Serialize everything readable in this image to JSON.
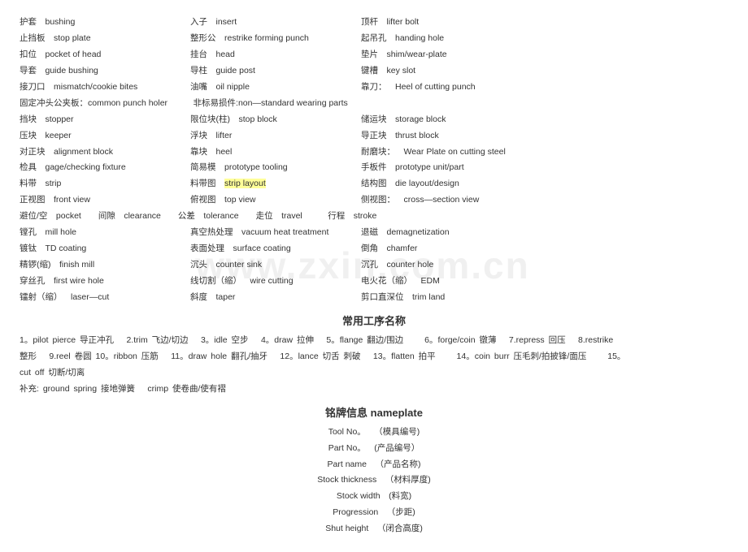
{
  "watermark": "www.zxin.com.cn",
  "rows": [
    {
      "c1": [
        "护套",
        "bushing"
      ],
      "c2": [
        "入子",
        "insert"
      ],
      "c3": [
        "顶杆",
        "lifter bolt"
      ]
    },
    {
      "c1": [
        "止挡板",
        "stop plate"
      ],
      "c2": [
        "整形公",
        "restrike forming punch"
      ],
      "c3": [
        "起吊孔",
        "handing hole"
      ]
    },
    {
      "c1": [
        "扣位",
        "pocket of head"
      ],
      "c2": [
        "挂台",
        "head"
      ],
      "c3": [
        "垫片",
        "shim/wear-plate"
      ]
    },
    {
      "c1": [
        "导套",
        "guide bushing"
      ],
      "c2": [
        "导柱",
        "guide post"
      ],
      "c3": [
        "键槽",
        "key slot"
      ]
    },
    {
      "c1": [
        "接刀口",
        "mismatch/cookie bites"
      ],
      "c2": [
        "油嘴",
        "oil nipple"
      ],
      "c3": [
        "靠刀：",
        "Heel of cutting punch"
      ]
    },
    {
      "full": "固定冲头公夹板：common punch holer   非标易损件:non—standard wearing parts"
    },
    {
      "c1": [
        "挡块",
        "stopper"
      ],
      "c2": [
        "限位块(柱)",
        "stop block"
      ],
      "c3": [
        "储运块",
        "storage block"
      ]
    },
    {
      "c1": [
        "压块",
        "keeper"
      ],
      "c2": [
        "浮块",
        "lifter"
      ],
      "c3": [
        "导正块",
        "thrust block"
      ]
    },
    {
      "c1": [
        "对正块",
        "alignment block"
      ],
      "c2": [
        "靠块",
        "heel"
      ],
      "c3": [
        "耐磨块：",
        "Wear Plate on cutting steel"
      ]
    },
    {
      "c1": [
        "检具",
        "gage/checking fixture"
      ],
      "c2": [
        "简易模",
        "prototype tooling"
      ],
      "c3": [
        "手板件",
        "prototype unit/part"
      ]
    },
    {
      "c1": [
        "料带",
        "strip"
      ],
      "c2": [
        "料带图",
        "strip layout"
      ],
      "c2hl": 1,
      "c3": [
        "结构图",
        "die layout/design"
      ]
    },
    {
      "c1": [
        "正视图",
        "front view"
      ],
      "c2": [
        "俯视图",
        "top view"
      ],
      "c3": [
        "侧视图：",
        "cross—section view"
      ]
    },
    {
      "full": "避位/空 pocket  间隙 clearance  公差 tolerance  走位 travel   行程 stroke"
    },
    {
      "c1": [
        "镗孔",
        "mill hole"
      ],
      "c2": [
        "真空热处理",
        "vacuum heat treatment"
      ],
      "c3": [
        "退磁",
        "demagnetization"
      ]
    },
    {
      "c1": [
        "镀钛",
        "TD coating"
      ],
      "c2": [
        "表面处理",
        "surface coating"
      ],
      "c3": [
        "倒角",
        "chamfer"
      ]
    },
    {
      "c1": [
        "精锣(缩)",
        "finish mill"
      ],
      "c2": [
        "沉头",
        "counter sink"
      ],
      "c3": [
        "沉孔",
        "counter hole"
      ]
    },
    {
      "c1": [
        "穿丝孔",
        "first wire hole"
      ],
      "c2": [
        "线切割（缩）",
        "wire cutting"
      ],
      "c3": [
        "电火花（缩）",
        "EDM"
      ]
    },
    {
      "c1": [
        "镭射（缩）",
        "laser—cut"
      ],
      "c2": [
        "斜度",
        "taper"
      ],
      "c3": [
        "剪口直深位",
        "trim land"
      ]
    }
  ],
  "heading1": "常用工序名称",
  "processes_line1": "1。pilot pierce  导正冲孔  2.trim  飞边/切边  3。idle  空步  4。draw  拉伸  5。flange  翻边/围边   6。forge/coin  镦薄  7.repress  回压  8.restrike",
  "processes_line2": "整形  9.reel  卷圆  10。ribbon  压筋  11。draw hole  翻孔/抽牙  12。lance  切舌  刺破  13。flatten  拍平   14。coin burr  压毛刺/拍披锋/面压   15。",
  "processes_line3": "cut off  切断/切离",
  "supplement": "补充: ground spring  接地弹簧  crimp  使卷曲/使有褶",
  "heading2": "铭牌信息 nameplate",
  "nameplate": [
    [
      "Tool No。",
      "（模具编号)"
    ],
    [
      "Part No。",
      "(产品编号）"
    ],
    [
      "Part name",
      "（产品名称)"
    ],
    [
      "Stock thickness",
      "（材料厚度)"
    ],
    [
      "Stock width",
      "(料宽)"
    ],
    [
      "Progression",
      "（步距)"
    ],
    [
      "Shut height",
      "（闭合高度)"
    ]
  ]
}
